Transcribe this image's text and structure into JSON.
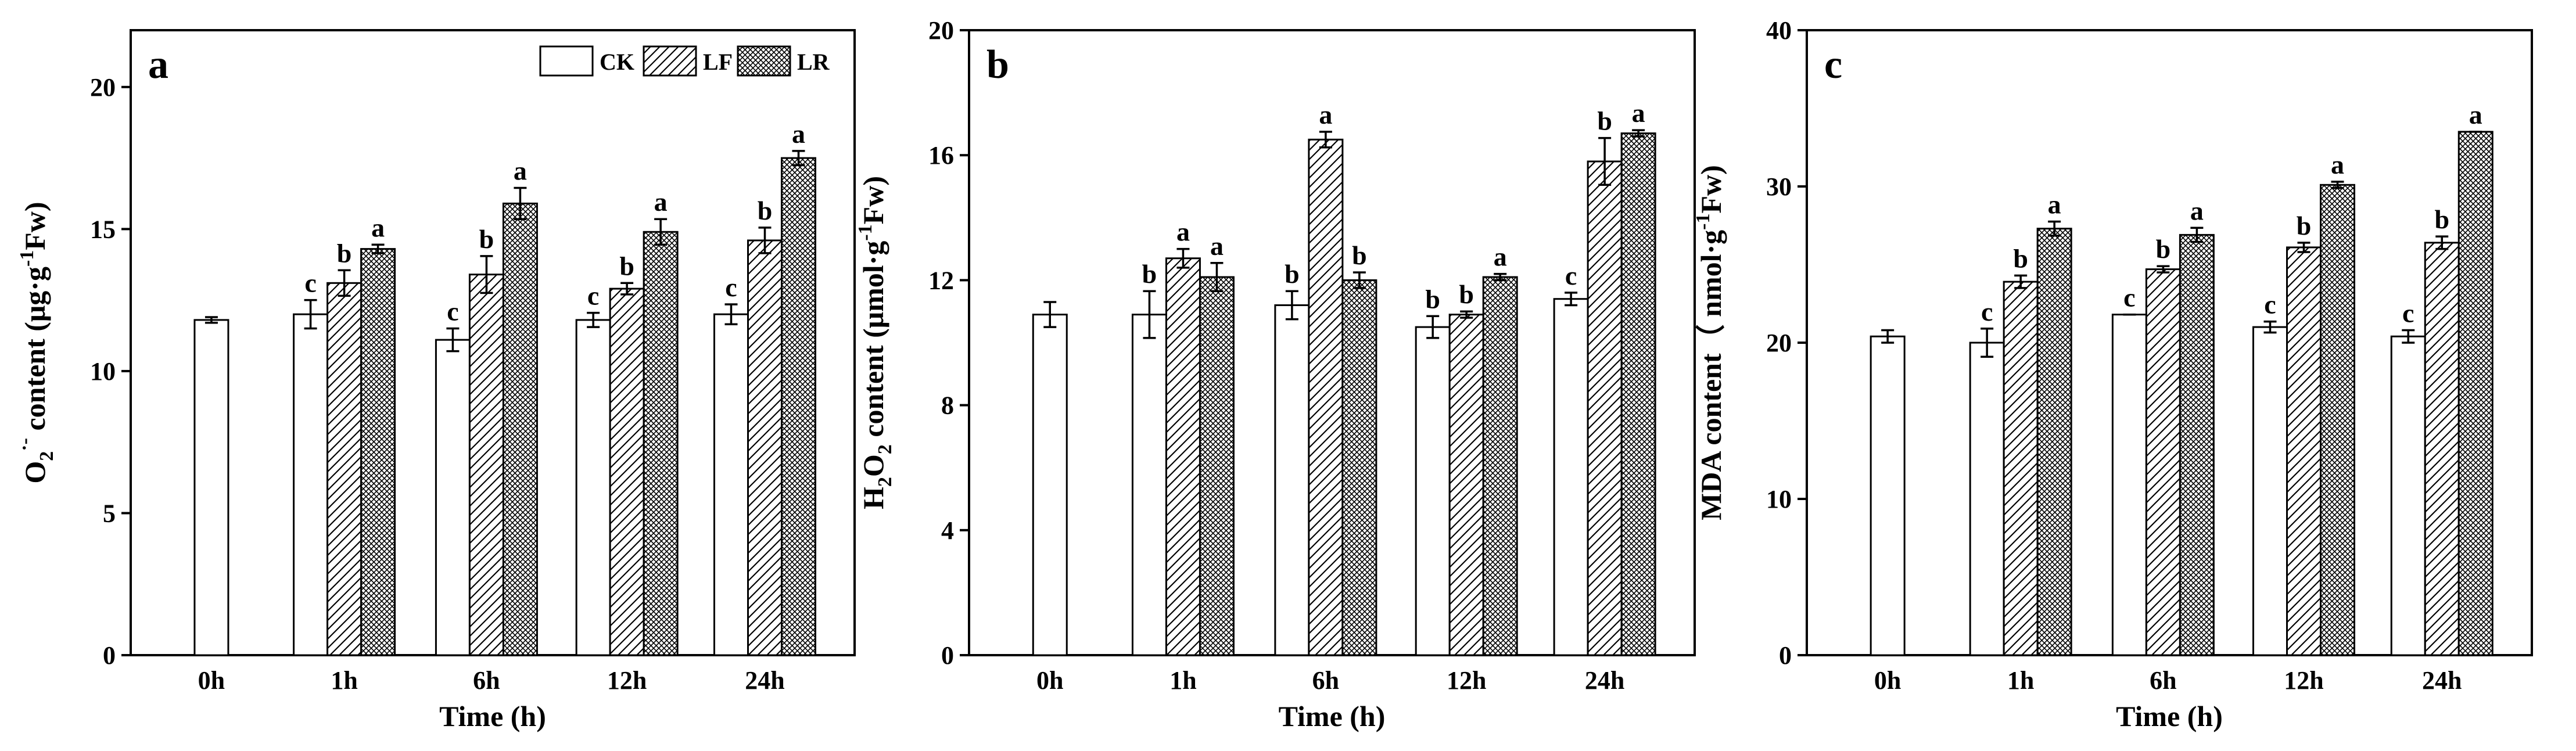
{
  "legend": {
    "items": [
      {
        "label": "CK",
        "pattern": "plain"
      },
      {
        "label": "LF",
        "pattern": "hatch"
      },
      {
        "label": "LR",
        "pattern": "cross"
      }
    ]
  },
  "chart_data": [
    {
      "type": "bar",
      "panel": "a",
      "xlabel": "Time (h)",
      "ylabel": "O2·⁻ content (μg·g⁻¹Fw)",
      "ylabel_parts": {
        "main": "O",
        "sub": "2",
        "sup": "·-",
        "rest1": " content (μg·g",
        "sup2": "-1",
        "rest2": "Fw)"
      },
      "ylim": [
        0,
        22
      ],
      "yticks": [
        0,
        5,
        10,
        15,
        20
      ],
      "categories": [
        "0h",
        "1h",
        "6h",
        "12h",
        "24h"
      ],
      "series": [
        {
          "name": "CK",
          "values": [
            11.8,
            12.0,
            11.1,
            11.8,
            12.0
          ],
          "errors": [
            0.1,
            0.5,
            0.4,
            0.25,
            0.35
          ],
          "letters": [
            "",
            "c",
            "c",
            "c",
            "c"
          ]
        },
        {
          "name": "LF",
          "values": [
            null,
            13.1,
            13.4,
            12.9,
            14.6
          ],
          "errors": [
            null,
            0.45,
            0.65,
            0.2,
            0.45
          ],
          "letters": [
            "",
            "b",
            "b",
            "b",
            "b"
          ]
        },
        {
          "name": "LR",
          "values": [
            null,
            14.3,
            15.9,
            14.9,
            17.5
          ],
          "errors": [
            null,
            0.15,
            0.55,
            0.45,
            0.25
          ],
          "letters": [
            "",
            "a",
            "a",
            "a",
            "a"
          ]
        }
      ]
    },
    {
      "type": "bar",
      "panel": "b",
      "xlabel": "Time (h)",
      "ylabel": "H2O2 content (μmol·g⁻¹Fw)",
      "ylabel_parts": {
        "main": "H",
        "sub": "2",
        "main2": "O",
        "sub2": "2",
        "rest1": " content (μmol·g",
        "sup2": "-1",
        "rest2": "Fw)"
      },
      "ylim": [
        0,
        20
      ],
      "yticks": [
        0,
        4,
        8,
        12,
        16,
        20
      ],
      "categories": [
        "0h",
        "1h",
        "6h",
        "12h",
        "24h"
      ],
      "series": [
        {
          "name": "CK",
          "values": [
            10.9,
            10.9,
            11.2,
            10.5,
            11.4
          ],
          "errors": [
            0.4,
            0.75,
            0.45,
            0.35,
            0.2
          ],
          "letters": [
            "",
            "b",
            "b",
            "b",
            "c"
          ]
        },
        {
          "name": "LF",
          "values": [
            null,
            12.7,
            16.5,
            10.9,
            15.8
          ],
          "errors": [
            null,
            0.3,
            0.25,
            0.1,
            0.75
          ],
          "letters": [
            "",
            "a",
            "a",
            "b",
            "b"
          ]
        },
        {
          "name": "LR",
          "values": [
            null,
            12.1,
            12.0,
            12.1,
            16.7
          ],
          "errors": [
            null,
            0.45,
            0.25,
            0.1,
            0.1
          ],
          "letters": [
            "",
            "a",
            "b",
            "a",
            "a"
          ]
        }
      ]
    },
    {
      "type": "bar",
      "panel": "c",
      "xlabel": "Time (h)",
      "ylabel": "MDA content（ nmol·g⁻¹Fw)",
      "ylabel_parts": {
        "main": "MDA content（ nmol·g",
        "sup2": "-1",
        "rest2": "Fw)"
      },
      "ylim": [
        0,
        40
      ],
      "yticks": [
        0,
        10,
        20,
        30,
        40
      ],
      "categories": [
        "0h",
        "1h",
        "6h",
        "12h",
        "24h"
      ],
      "series": [
        {
          "name": "CK",
          "values": [
            20.4,
            20.0,
            21.8,
            21.0,
            20.4
          ],
          "errors": [
            0.4,
            0.9,
            0.0,
            0.35,
            0.4
          ],
          "letters": [
            "",
            "c",
            "c",
            "c",
            "c"
          ]
        },
        {
          "name": "LF",
          "values": [
            null,
            23.9,
            24.7,
            26.1,
            26.4
          ],
          "errors": [
            null,
            0.4,
            0.2,
            0.3,
            0.4
          ],
          "letters": [
            "",
            "b",
            "b",
            "b",
            "b"
          ]
        },
        {
          "name": "LR",
          "values": [
            null,
            27.3,
            26.9,
            30.1,
            33.5
          ],
          "errors": [
            null,
            0.45,
            0.45,
            0.2,
            0.0
          ],
          "letters": [
            "",
            "a",
            "a",
            "a",
            "a"
          ]
        }
      ]
    }
  ]
}
